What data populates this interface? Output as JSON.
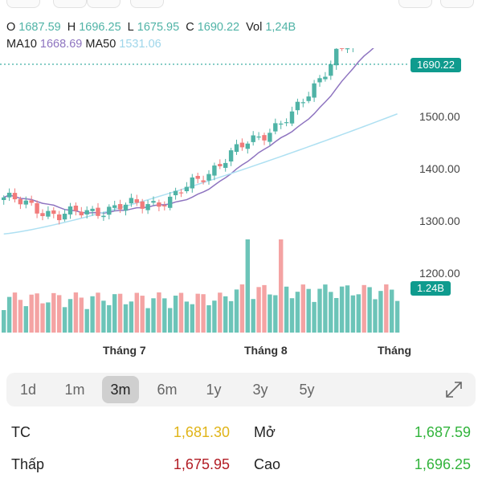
{
  "ohlc": {
    "o_label": "O",
    "o_value": "1687.59",
    "h_label": "H",
    "h_value": "1696.25",
    "l_label": "L",
    "l_value": "1675.95",
    "c_label": "C",
    "c_value": "1690.22",
    "vol_label": "Vol",
    "vol_value": "1,24B"
  },
  "ma": {
    "ma10_label": "MA10",
    "ma10_value": "1668.69",
    "ma50_label": "MA50",
    "ma50_value": "1531.06"
  },
  "chart_data": {
    "type": "candlestick",
    "y_ticks": [
      "1600.00",
      "1500.00",
      "1400.00",
      "1300.00",
      "1200.00"
    ],
    "y_tick_values": [
      1600,
      1500,
      1400,
      1300,
      1200
    ],
    "x_labels": [
      "Tháng 7",
      "Tháng 8",
      "Tháng"
    ],
    "last_price_label": "1690.22",
    "last_price": 1690.22,
    "volume_label": "1.24B",
    "colors": {
      "up": "#4fb3a6",
      "down": "#f17b7b",
      "volume_up": "#6cc4b8",
      "volume_down": "#f4a3a3",
      "ma10": "#8e74c0",
      "ma50": "#aee0f2",
      "badge": "#0f9b8e"
    }
  },
  "periods": [
    "1d",
    "1m",
    "3m",
    "6m",
    "1y",
    "3y",
    "5y"
  ],
  "active_period": "3m",
  "stats": {
    "tc_label": "TC",
    "tc_value": "1,681.30",
    "mo_label": "Mở",
    "mo_value": "1,687.59",
    "thap_label": "Thấp",
    "thap_value": "1,675.95",
    "cao_label": "Cao",
    "cao_value": "1,696.25"
  }
}
